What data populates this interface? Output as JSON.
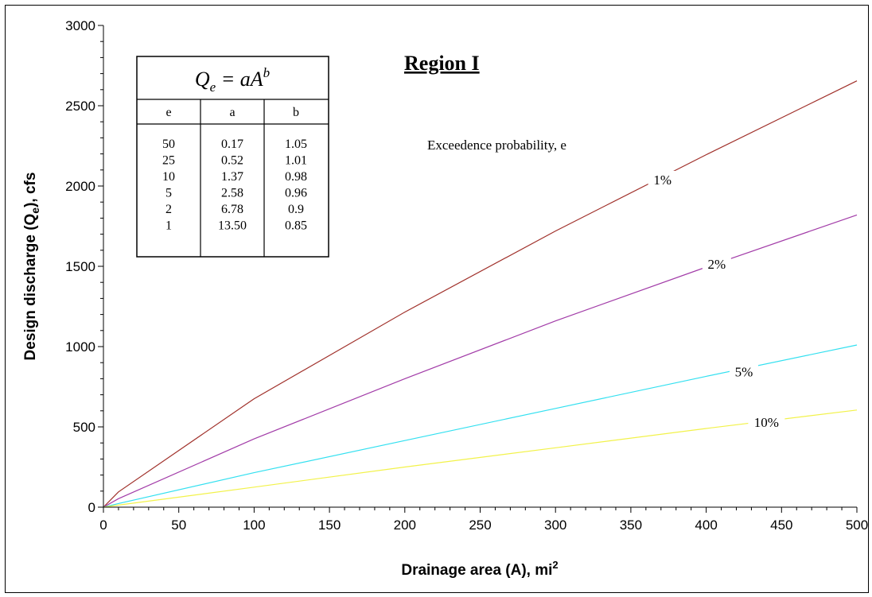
{
  "chart_data": {
    "type": "line",
    "title": "Region I",
    "xlabel": "Drainage area (A), mi",
    "xlabel_sup": "2",
    "ylabel_pre": "Design discharge (Q",
    "ylabel_sub": "e",
    "ylabel_post": "), cfs",
    "xlim": [
      0,
      500
    ],
    "ylim": [
      0,
      3000
    ],
    "x_ticks": [
      0,
      50,
      100,
      150,
      200,
      250,
      300,
      350,
      400,
      450,
      500
    ],
    "y_ticks": [
      0,
      500,
      1000,
      1500,
      2000,
      2500,
      3000
    ],
    "grid": false,
    "annotation": "Exceedence probability, e",
    "x": [
      0,
      10,
      100,
      200,
      300,
      400,
      500
    ],
    "series": [
      {
        "name": "1%",
        "color": "#a0302a",
        "values": [
          0,
          95,
          675,
          1215,
          1720,
          2195,
          2655
        ]
      },
      {
        "name": "2%",
        "color": "#a23ca8",
        "values": [
          0,
          53,
          425,
          800,
          1160,
          1495,
          1820
        ]
      },
      {
        "name": "5%",
        "color": "#33e0f0",
        "values": [
          0,
          23,
          215,
          415,
          615,
          815,
          1010
        ]
      },
      {
        "name": "10%",
        "color": "#f2f24a",
        "values": [
          0,
          13,
          125,
          250,
          370,
          490,
          605
        ]
      }
    ],
    "label_positions_data": [
      {
        "series": "1%",
        "x": 371,
        "y": 2030
      },
      {
        "series": "2%",
        "x": 407,
        "y": 1505
      },
      {
        "series": "5%",
        "x": 425,
        "y": 835
      },
      {
        "series": "10%",
        "x": 440,
        "y": 520
      }
    ]
  },
  "formula_table": {
    "formula_q": "Q",
    "formula_q_sub": "e",
    "formula_rest": " = aA",
    "formula_sup": "b",
    "headers": [
      "e",
      "a",
      "b"
    ],
    "rows": [
      [
        "50",
        "0.17",
        "1.05"
      ],
      [
        "25",
        "0.52",
        "1.01"
      ],
      [
        "10",
        "1.37",
        "0.98"
      ],
      [
        "5",
        "2.58",
        "0.96"
      ],
      [
        "2",
        "6.78",
        "0.9"
      ],
      [
        "1",
        "13.50",
        "0.85"
      ]
    ]
  }
}
